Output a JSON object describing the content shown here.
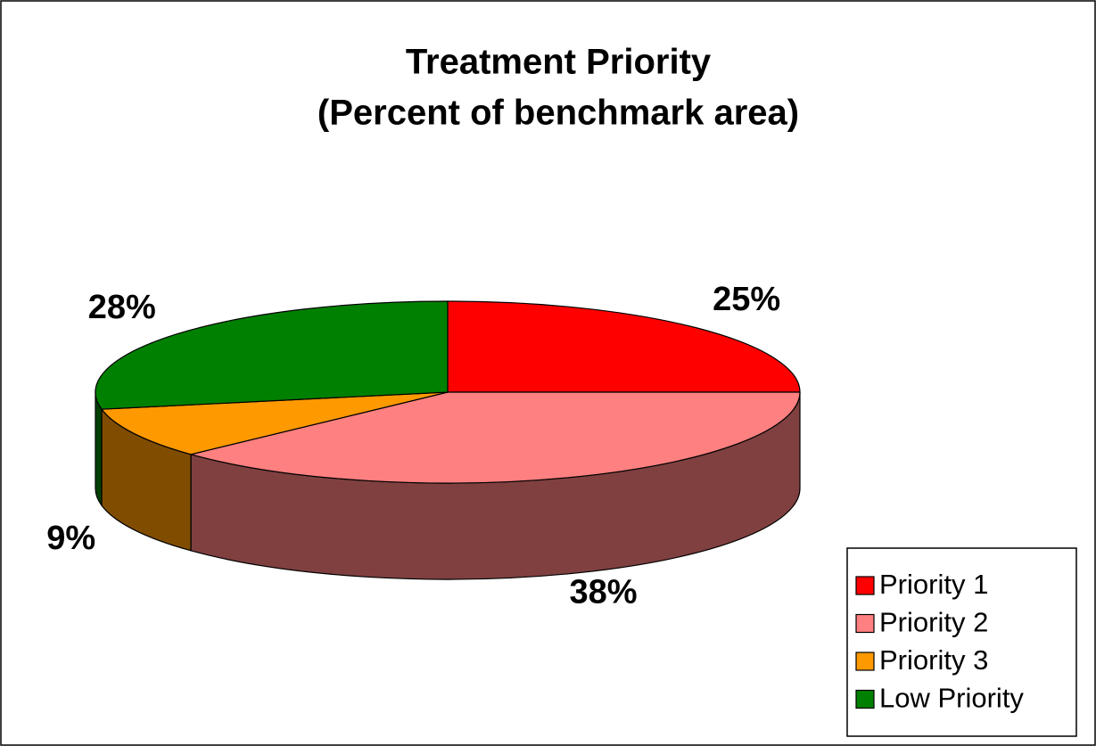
{
  "chart_data": {
    "type": "pie",
    "title": "Treatment Priority",
    "subtitle": "(Percent of benchmark area)",
    "categories": [
      "Priority 1",
      "Priority 2",
      "Priority 3",
      "Low Priority"
    ],
    "values": [
      25,
      38,
      9,
      28
    ],
    "value_labels": [
      "25%",
      "38%",
      "9%",
      "28%"
    ],
    "colors": [
      "#ff0000",
      "#ff8080",
      "#ff9900",
      "#008000"
    ]
  }
}
